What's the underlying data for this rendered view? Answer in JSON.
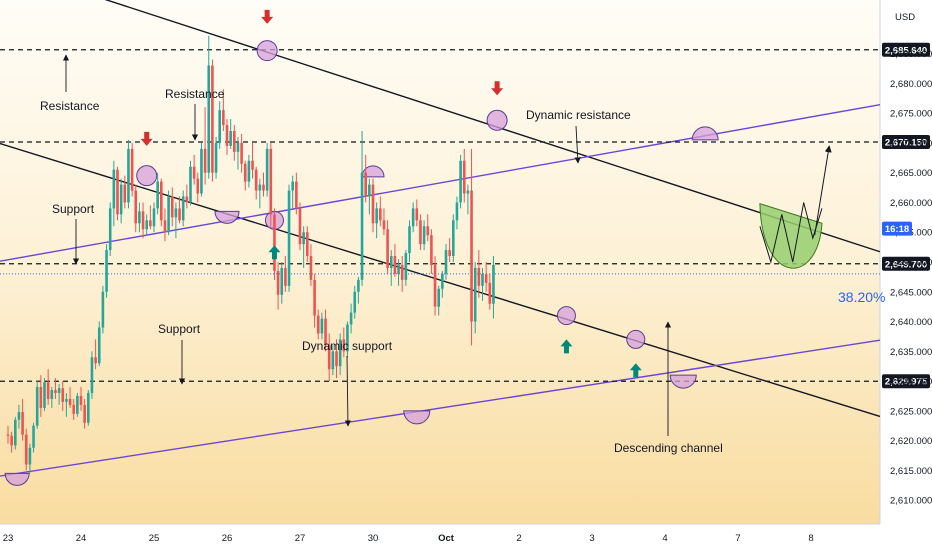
{
  "chart_data": {
    "type": "candlestick",
    "currency": "USD",
    "ylim": [
      2606,
      2694
    ],
    "y_ticks": [
      2610,
      2615,
      2620,
      2625,
      2630,
      2635,
      2640,
      2645,
      2650,
      2655,
      2660,
      2665,
      2670,
      2675,
      2680,
      2685
    ],
    "y_tick_labels": [
      "2,610.000",
      "2,615.000",
      "2,620.000",
      "2,625.000",
      "2,630.000",
      "2,635.000",
      "2,640.000",
      "2,645.000",
      "2,650.000",
      "2,655.000",
      "2,660.000",
      "2,665.000",
      "2,670.000",
      "2,675.000",
      "2,680.000",
      "2,685.000"
    ],
    "x_labels": [
      "23",
      "24",
      "25",
      "26",
      "27",
      "30",
      "Oct",
      "2",
      "3",
      "4",
      "7",
      "8"
    ],
    "x_label_bars": [
      0,
      20,
      40,
      60,
      80,
      100,
      120,
      140,
      160,
      180,
      200,
      220
    ],
    "levels": [
      {
        "value": 2685.64,
        "label": "2,685.640"
      },
      {
        "value": 2670.15,
        "label": "2,670.150"
      },
      {
        "value": 2649.7,
        "label": "2,649.700"
      },
      {
        "value": 2629.975,
        "label": "2,629.975"
      }
    ],
    "current_price": 2648.0,
    "countdown": "16:18",
    "fib_label": "38.20%",
    "annotations": [
      "Resistance",
      "Resistance",
      "Support",
      "Support",
      "Dynamic support",
      "Dynamic resistance",
      "Descending channel"
    ],
    "channel_lines": [
      {
        "name": "descending-upper",
        "start": [
          -8,
          2701
        ],
        "end": [
          235,
          2652.5
        ]
      },
      {
        "name": "descending-lower",
        "start": [
          -8,
          2671
        ],
        "end": [
          235,
          2624.8
        ]
      },
      {
        "name": "ascending-upper",
        "start": [
          -8,
          2649.5
        ],
        "end": [
          235,
          2676
        ]
      },
      {
        "name": "ascending-lower",
        "start": [
          -8,
          2613.5
        ],
        "end": [
          235,
          2636.5
        ]
      }
    ],
    "candles": [
      [
        2621.0,
        2622.5,
        2619.5,
        2620.8
      ],
      [
        2620.8,
        2621.5,
        2618.0,
        2619.2
      ],
      [
        2619.2,
        2624.0,
        2618.5,
        2623.5
      ],
      [
        2623.5,
        2626.0,
        2622.0,
        2624.8
      ],
      [
        2624.8,
        2627.0,
        2620.0,
        2621.0
      ],
      [
        2621.0,
        2622.0,
        2615.0,
        2616.0
      ],
      [
        2616.0,
        2619.5,
        2614.5,
        2618.8
      ],
      [
        2618.8,
        2623.0,
        2618.0,
        2622.5
      ],
      [
        2622.5,
        2630.0,
        2622.0,
        2629.0
      ],
      [
        2629.0,
        2631.0,
        2624.0,
        2625.5
      ],
      [
        2625.5,
        2630.5,
        2625.0,
        2629.8
      ],
      [
        2629.8,
        2632.0,
        2626.0,
        2627.0
      ],
      [
        2627.0,
        2629.0,
        2625.5,
        2628.5
      ],
      [
        2628.5,
        2630.5,
        2627.0,
        2628.0
      ],
      [
        2628.0,
        2629.5,
        2626.0,
        2628.8
      ],
      [
        2628.8,
        2630.0,
        2625.0,
        2626.5
      ],
      [
        2626.5,
        2628.0,
        2624.0,
        2627.0
      ],
      [
        2627.0,
        2629.0,
        2625.5,
        2626.0
      ],
      [
        2626.0,
        2627.0,
        2623.5,
        2624.5
      ],
      [
        2624.5,
        2628.0,
        2624.0,
        2627.5
      ],
      [
        2627.5,
        2629.0,
        2625.0,
        2626.0
      ],
      [
        2626.0,
        2627.0,
        2622.0,
        2623.0
      ],
      [
        2623.0,
        2628.5,
        2622.5,
        2628.0
      ],
      [
        2628.0,
        2635.0,
        2627.0,
        2634.0
      ],
      [
        2634.0,
        2637.0,
        2632.0,
        2633.0
      ],
      [
        2633.0,
        2640.0,
        2632.5,
        2639.0
      ],
      [
        2639.0,
        2646.0,
        2638.0,
        2645.0
      ],
      [
        2645.0,
        2653.0,
        2644.0,
        2652.0
      ],
      [
        2652.0,
        2660.0,
        2651.0,
        2659.0
      ],
      [
        2659.0,
        2667.0,
        2656.0,
        2665.5
      ],
      [
        2665.5,
        2666.0,
        2657.0,
        2658.0
      ],
      [
        2658.0,
        2664.0,
        2656.5,
        2663.0
      ],
      [
        2663.0,
        2664.5,
        2659.0,
        2660.0
      ],
      [
        2660.0,
        2670.5,
        2659.0,
        2669.0
      ],
      [
        2669.0,
        2670.0,
        2661.0,
        2662.0
      ],
      [
        2662.0,
        2663.0,
        2655.0,
        2656.5
      ],
      [
        2656.5,
        2660.0,
        2655.0,
        2658.5
      ],
      [
        2658.5,
        2660.0,
        2654.0,
        2655.5
      ],
      [
        2655.5,
        2658.0,
        2654.5,
        2657.0
      ],
      [
        2657.0,
        2659.5,
        2655.5,
        2656.0
      ],
      [
        2656.0,
        2660.0,
        2655.0,
        2659.0
      ],
      [
        2659.0,
        2665.0,
        2658.0,
        2663.5
      ],
      [
        2663.5,
        2664.0,
        2656.0,
        2657.0
      ],
      [
        2657.0,
        2659.0,
        2653.5,
        2655.0
      ],
      [
        2655.0,
        2662.0,
        2654.5,
        2661.0
      ],
      [
        2661.0,
        2662.5,
        2656.0,
        2657.5
      ],
      [
        2657.5,
        2660.0,
        2654.0,
        2659.0
      ],
      [
        2659.0,
        2661.0,
        2656.5,
        2657.0
      ],
      [
        2657.0,
        2662.0,
        2656.0,
        2661.0
      ],
      [
        2661.0,
        2663.0,
        2659.0,
        2660.0
      ],
      [
        2660.0,
        2667.0,
        2659.5,
        2666.0
      ],
      [
        2666.0,
        2668.0,
        2663.0,
        2664.0
      ],
      [
        2664.0,
        2665.0,
        2660.0,
        2661.5
      ],
      [
        2661.5,
        2670.0,
        2661.0,
        2669.0
      ],
      [
        2669.0,
        2676.0,
        2663.0,
        2665.0
      ],
      [
        2665.0,
        2688.0,
        2664.0,
        2683.0
      ],
      [
        2683.0,
        2684.0,
        2663.5,
        2665.0
      ],
      [
        2665.0,
        2671.0,
        2664.0,
        2670.0
      ],
      [
        2670.0,
        2677.0,
        2669.0,
        2675.5
      ],
      [
        2675.5,
        2679.0,
        2672.0,
        2673.0
      ],
      [
        2673.0,
        2674.0,
        2668.0,
        2669.5
      ],
      [
        2669.5,
        2674.0,
        2669.0,
        2672.0
      ],
      [
        2672.0,
        2673.0,
        2667.0,
        2668.5
      ],
      [
        2668.5,
        2671.0,
        2665.5,
        2670.0
      ],
      [
        2670.0,
        2671.5,
        2665.0,
        2666.5
      ],
      [
        2666.5,
        2667.0,
        2662.0,
        2663.5
      ],
      [
        2663.5,
        2668.0,
        2662.5,
        2667.0
      ],
      [
        2667.0,
        2670.0,
        2664.0,
        2665.5
      ],
      [
        2665.5,
        2666.0,
        2660.5,
        2662.0
      ],
      [
        2662.0,
        2664.0,
        2659.0,
        2663.0
      ],
      [
        2663.0,
        2665.0,
        2661.0,
        2662.0
      ],
      [
        2662.0,
        2670.0,
        2661.0,
        2669.0
      ],
      [
        2669.0,
        2670.0,
        2656.0,
        2658.0
      ],
      [
        2658.0,
        2659.0,
        2647.0,
        2648.5
      ],
      [
        2648.5,
        2650.0,
        2642.0,
        2644.5
      ],
      [
        2644.5,
        2650.0,
        2643.0,
        2649.0
      ],
      [
        2649.0,
        2651.0,
        2645.0,
        2646.0
      ],
      [
        2646.0,
        2663.0,
        2645.0,
        2662.0
      ],
      [
        2662.0,
        2664.5,
        2659.0,
        2663.5
      ],
      [
        2663.5,
        2665.0,
        2658.0,
        2659.0
      ],
      [
        2659.0,
        2660.0,
        2652.0,
        2653.0
      ],
      [
        2653.0,
        2656.0,
        2649.0,
        2655.0
      ],
      [
        2655.0,
        2656.0,
        2650.0,
        2651.0
      ],
      [
        2651.0,
        2653.0,
        2646.0,
        2647.0
      ],
      [
        2647.0,
        2648.0,
        2639.0,
        2641.0
      ],
      [
        2641.0,
        2642.0,
        2637.0,
        2638.0
      ],
      [
        2638.0,
        2641.5,
        2637.0,
        2640.5
      ],
      [
        2640.5,
        2642.0,
        2635.0,
        2636.0
      ],
      [
        2636.0,
        2638.0,
        2630.0,
        2632.0
      ],
      [
        2632.0,
        2636.0,
        2631.0,
        2635.0
      ],
      [
        2635.0,
        2637.0,
        2630.5,
        2632.5
      ],
      [
        2632.5,
        2638.0,
        2631.0,
        2637.0
      ],
      [
        2637.0,
        2639.0,
        2634.0,
        2635.0
      ],
      [
        2635.0,
        2640.0,
        2634.0,
        2639.5
      ],
      [
        2639.5,
        2643.0,
        2638.0,
        2641.5
      ],
      [
        2641.5,
        2646.0,
        2640.5,
        2645.0
      ],
      [
        2645.0,
        2647.5,
        2643.0,
        2647.0
      ],
      [
        2647.0,
        2672.0,
        2646.0,
        2665.0
      ],
      [
        2665.0,
        2668.0,
        2660.0,
        2661.0
      ],
      [
        2661.0,
        2664.0,
        2658.0,
        2663.0
      ],
      [
        2663.0,
        2664.0,
        2655.0,
        2656.5
      ],
      [
        2656.5,
        2660.0,
        2654.0,
        2659.0
      ],
      [
        2659.0,
        2661.0,
        2656.0,
        2657.0
      ],
      [
        2657.0,
        2659.0,
        2654.5,
        2655.5
      ],
      [
        2655.5,
        2657.0,
        2648.0,
        2649.0
      ],
      [
        2649.0,
        2652.0,
        2646.0,
        2651.0
      ],
      [
        2651.0,
        2653.0,
        2647.5,
        2648.0
      ],
      [
        2648.0,
        2650.5,
        2646.0,
        2649.5
      ],
      [
        2649.5,
        2651.0,
        2645.0,
        2647.0
      ],
      [
        2647.0,
        2652.0,
        2646.0,
        2651.5
      ],
      [
        2651.5,
        2657.0,
        2650.0,
        2656.0
      ],
      [
        2656.0,
        2660.0,
        2655.0,
        2659.0
      ],
      [
        2659.0,
        2660.5,
        2656.0,
        2657.0
      ],
      [
        2657.0,
        2658.0,
        2652.0,
        2653.0
      ],
      [
        2653.0,
        2657.0,
        2652.0,
        2656.0
      ],
      [
        2656.0,
        2658.0,
        2653.5,
        2654.5
      ],
      [
        2654.5,
        2655.5,
        2648.0,
        2649.5
      ],
      [
        2649.5,
        2651.0,
        2641.0,
        2642.5
      ],
      [
        2642.5,
        2646.0,
        2641.0,
        2645.5
      ],
      [
        2645.5,
        2648.5,
        2644.0,
        2648.0
      ],
      [
        2648.0,
        2653.0,
        2647.0,
        2652.0
      ],
      [
        2652.0,
        2654.0,
        2650.0,
        2651.0
      ],
      [
        2651.0,
        2658.0,
        2650.0,
        2657.0
      ],
      [
        2657.0,
        2661.0,
        2655.5,
        2660.0
      ],
      [
        2660.0,
        2668.0,
        2659.0,
        2667.0
      ],
      [
        2667.0,
        2669.0,
        2660.0,
        2661.5
      ],
      [
        2661.5,
        2663.0,
        2658.0,
        2662.0
      ],
      [
        2662.0,
        2669.0,
        2636.0,
        2640.0
      ],
      [
        2640.0,
        2650.0,
        2638.0,
        2649.0
      ],
      [
        2649.0,
        2652.0,
        2644.0,
        2646.0
      ],
      [
        2646.0,
        2649.0,
        2643.5,
        2648.0
      ],
      [
        2648.0,
        2650.0,
        2645.0,
        2646.5
      ],
      [
        2646.5,
        2648.0,
        2642.0,
        2643.0
      ],
      [
        2643.0,
        2651.0,
        2640.5,
        2649.5
      ]
    ]
  }
}
